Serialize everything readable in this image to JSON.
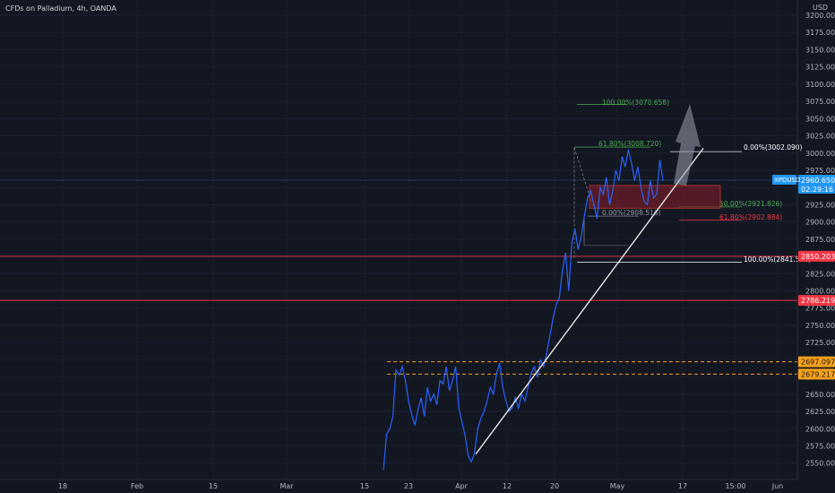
{
  "header": {
    "title": "CFDs on Palladium, 4h, OANDA"
  },
  "axis": {
    "currency": "USD"
  },
  "colors": {
    "background": "#131722",
    "price_line": "#2962ff",
    "support_red": "#f23645",
    "level_orange": "#f7a21b",
    "fib_green": "#4caf50",
    "fib_red": "#f23645",
    "fib_white": "#ffffff",
    "box_fill": "#8a1f2a",
    "price_label": "#2196f3"
  },
  "chart_data": {
    "type": "line",
    "symbol": "XPDUSD",
    "ylim": [
      2540,
      3205
    ],
    "y_ticks": [
      2550,
      2575,
      2600,
      2625,
      2650,
      2675,
      2700,
      2725,
      2750,
      2775,
      2800,
      2825,
      2850,
      2875,
      2900,
      2925,
      2950,
      2975,
      3000,
      3025,
      3050,
      3075,
      3100,
      3125,
      3150,
      3175,
      3200
    ],
    "y_tick_labels": [
      "2550.000",
      "2575.000",
      "2600.000",
      "2625.000",
      "2650.000",
      "2675.000",
      "2700.000",
      "2725.000",
      "2750.000",
      "2775.000",
      "2800.000",
      "2825.000",
      "2850.000",
      "2875.000",
      "2900.000",
      "2925.000",
      "2950.000",
      "2975.000",
      "3000.000",
      "3025.000",
      "3050.000",
      "3075.000",
      "3100.000",
      "3125.000",
      "3150.000",
      "3175.000",
      "3200.000"
    ],
    "x_ticks": [
      "18",
      "Feb",
      "15",
      "Mar",
      "15",
      "23",
      "Apr",
      "12",
      "20",
      "May",
      "17",
      "15:00",
      "Jun"
    ],
    "current_price": {
      "label": "XPDUSD",
      "value": "2960.650",
      "countdown": "02:29:16",
      "y": 2960.65
    },
    "horizontal_levels": [
      {
        "value": 2850.203,
        "label": "2850.203",
        "color": "red",
        "style": "solid"
      },
      {
        "value": 2786.219,
        "label": "2786.219",
        "color": "red",
        "style": "solid"
      },
      {
        "value": 2697.097,
        "label": "2697.097",
        "color": "orange",
        "style": "dashed"
      },
      {
        "value": 2679.217,
        "label": "2679.217",
        "color": "orange",
        "style": "dashed"
      }
    ],
    "fib_levels": [
      {
        "label": "100.00%(3070.658)",
        "value": 3070.658,
        "color": "green"
      },
      {
        "label": "61.80%(3008.720)",
        "value": 3008.72,
        "color": "green"
      },
      {
        "label": "0.00%(2908.516)",
        "value": 2908.516,
        "color": "gray"
      },
      {
        "label": "0.00%(3002.090)",
        "value": 3002.09,
        "color": "white"
      },
      {
        "label": "50.00%(2921.826)",
        "value": 2921.826,
        "color": "green"
      },
      {
        "label": "61.80%(2902.884)",
        "value": 2902.884,
        "color": "red"
      },
      {
        "label": "100.00%(2841.562)",
        "value": 2841.562,
        "color": "white"
      }
    ],
    "zone": {
      "top": 2953,
      "bottom": 2920
    },
    "trendline": {
      "from": 2563,
      "to": 3007
    },
    "price_series": [
      2540,
      2592,
      2600,
      2617,
      2685,
      2678,
      2690,
      2670,
      2640,
      2620,
      2605,
      2628,
      2645,
      2618,
      2660,
      2640,
      2650,
      2635,
      2670,
      2665,
      2690,
      2655,
      2670,
      2690,
      2630,
      2610,
      2590,
      2560,
      2552,
      2565,
      2600,
      2615,
      2625,
      2640,
      2660,
      2650,
      2680,
      2695,
      2660,
      2640,
      2625,
      2630,
      2645,
      2630,
      2650,
      2640,
      2660,
      2680,
      2690,
      2675,
      2700,
      2690,
      2710,
      2735,
      2760,
      2780,
      2790,
      2830,
      2855,
      2800,
      2870,
      2890,
      2860,
      2880,
      2910,
      2935,
      2945,
      2925,
      2905,
      2950,
      2940,
      2965,
      2925,
      2945,
      2975,
      2960,
      2995,
      2980,
      3005,
      2985,
      2960,
      2980,
      2950,
      2930,
      2925,
      2960,
      2935,
      2940,
      2990,
      2960
    ]
  }
}
